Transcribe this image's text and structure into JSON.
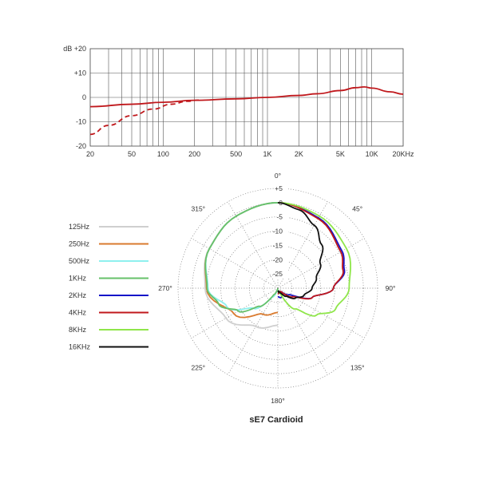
{
  "chart_data": [
    {
      "type": "line",
      "xscale": "log",
      "xlim": [
        20,
        20000
      ],
      "ylim": [
        -20,
        20
      ],
      "x_ticks": [
        {
          "value": 20,
          "label": "20"
        },
        {
          "value": 50,
          "label": "50"
        },
        {
          "value": 100,
          "label": "100"
        },
        {
          "value": 200,
          "label": "200"
        },
        {
          "value": 500,
          "label": "500"
        },
        {
          "value": 1000,
          "label": "1K"
        },
        {
          "value": 2000,
          "label": "2K"
        },
        {
          "value": 5000,
          "label": "5K"
        },
        {
          "value": 10000,
          "label": "10K"
        },
        {
          "value": 20000,
          "label": "20KHz"
        }
      ],
      "y_ticks": [
        {
          "value": 20,
          "label": "dB +20"
        },
        {
          "value": 10,
          "label": "+10"
        },
        {
          "value": 0,
          "label": "0"
        },
        {
          "value": -10,
          "label": "-10"
        },
        {
          "value": -20,
          "label": "-20"
        }
      ],
      "grid": true,
      "series": [
        {
          "style": "solid",
          "color": "#c0181c",
          "x": [
            20,
            50,
            100,
            200,
            500,
            1000,
            2000,
            3000,
            5000,
            7000,
            8500,
            10000,
            15000,
            20000
          ],
          "y": [
            -3.8,
            -2.8,
            -2,
            -1.2,
            -0.6,
            0,
            0.8,
            1.5,
            2.8,
            4,
            4.3,
            3.8,
            2.3,
            1.3
          ]
        },
        {
          "style": "dashed",
          "color": "#c0181c",
          "x": [
            20,
            30,
            50,
            80,
            120,
            170,
            220
          ],
          "y": [
            -15.2,
            -11.5,
            -7.5,
            -4.8,
            -2.8,
            -1.6,
            -1.1
          ]
        }
      ]
    },
    {
      "type": "polar",
      "angle_ticks": [
        {
          "angle": 0,
          "label": "0°"
        },
        {
          "angle": 45,
          "label": "45°"
        },
        {
          "angle": 90,
          "label": "90°"
        },
        {
          "angle": 135,
          "label": "135°"
        },
        {
          "angle": 180,
          "label": "180°"
        },
        {
          "angle": 225,
          "label": "225°"
        },
        {
          "angle": 270,
          "label": "270°"
        },
        {
          "angle": 315,
          "label": "315°"
        }
      ],
      "radial_ticks": [
        {
          "value": 5,
          "label": "+5"
        },
        {
          "value": 0,
          "label": "0"
        },
        {
          "value": -5,
          "label": "-5"
        },
        {
          "value": -10,
          "label": "-10"
        },
        {
          "value": -15,
          "label": "-15"
        },
        {
          "value": -20,
          "label": "-20"
        },
        {
          "value": -25,
          "label": "-25"
        }
      ],
      "rlim": [
        -30,
        5
      ],
      "grid": true,
      "legend_position": "left",
      "title": "sE7  Cardioid",
      "series": [
        {
          "name": "125Hz",
          "color": "#cfcfcf",
          "side": "left",
          "angle": [
            0,
            30,
            60,
            90,
            120,
            150,
            180
          ],
          "r": [
            0,
            -0.8,
            -2.2,
            -4.5,
            -9,
            -14.5,
            -17
          ]
        },
        {
          "name": "250Hz",
          "color": "#d97a2e",
          "side": "left",
          "angle": [
            0,
            30,
            60,
            90,
            120,
            150,
            180
          ],
          "r": [
            0,
            -0.8,
            -2.3,
            -5,
            -12.2,
            -19.5,
            -21.5
          ]
        },
        {
          "name": "500Hz",
          "color": "#8ef0ee",
          "side": "left",
          "angle": [
            0,
            30,
            60,
            90,
            110,
            130,
            150,
            165,
            180
          ],
          "r": [
            0,
            -0.8,
            -2.3,
            -5.5,
            -11,
            -19,
            -26.5,
            -29,
            -29.5
          ]
        },
        {
          "name": "1KHz",
          "color": "#66c16a",
          "side": "left",
          "angle": [
            0,
            30,
            60,
            90,
            105,
            120,
            135,
            150,
            165,
            180
          ],
          "r": [
            0,
            -0.8,
            -2.3,
            -5.2,
            -8.5,
            -14,
            -21,
            -27.5,
            -29.5,
            -30
          ]
        },
        {
          "name": "2KHz",
          "color": "#1515c8",
          "side": "right",
          "angle": [
            0,
            30,
            60,
            75,
            90,
            105,
            120,
            140,
            160,
            180
          ],
          "r": [
            0,
            -1.5,
            -4,
            -5.8,
            -10.5,
            -17.5,
            -25.5,
            -28.5,
            -26.5,
            -27
          ]
        },
        {
          "name": "4KHz",
          "color": "#c0181c",
          "side": "right",
          "angle": [
            0,
            30,
            60,
            75,
            90,
            105,
            120,
            140,
            160,
            180
          ],
          "r": [
            0,
            -1.8,
            -4.5,
            -6.3,
            -10.5,
            -17.5,
            -24,
            -28.5,
            -28.5,
            -28
          ]
        },
        {
          "name": "8KHz",
          "color": "#8fe64a",
          "side": "right",
          "angle": [
            0,
            30,
            60,
            90,
            110,
            125,
            140,
            160,
            180
          ],
          "r": [
            0,
            -0.8,
            -2.2,
            -5,
            -8.5,
            -13.5,
            -20.5,
            -29,
            -29
          ]
        },
        {
          "name": "16KHz",
          "color": "#111111",
          "side": "right",
          "angle": [
            0,
            15,
            30,
            45,
            60,
            75,
            90,
            105,
            120,
            135,
            150,
            165,
            180
          ],
          "r": [
            0,
            -1.5,
            -4.5,
            -8.3,
            -12.8,
            -16,
            -18,
            -20.5,
            -23,
            -26,
            -28,
            -29,
            -28.5
          ]
        }
      ]
    }
  ]
}
